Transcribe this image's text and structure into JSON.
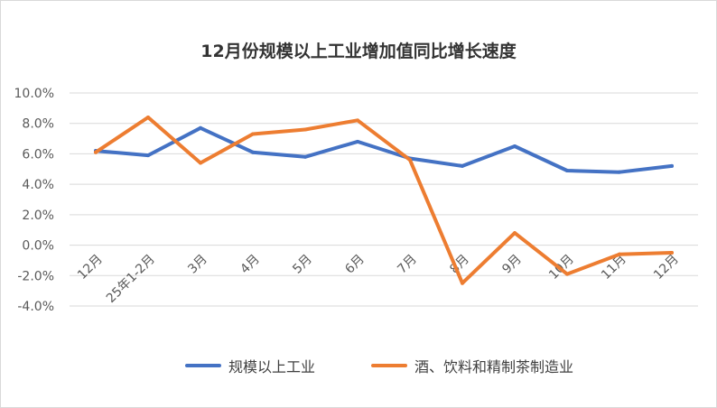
{
  "chart_data": {
    "type": "line",
    "title": "12月份规模以上工业增加值同比增长速度",
    "categories": [
      "12月",
      "25年1-2月",
      "3月",
      "4月",
      "5月",
      "6月",
      "7月",
      "8月",
      "9月",
      "10月",
      "11月",
      "12月"
    ],
    "yticks": [
      "10.0%",
      "8.0%",
      "6.0%",
      "4.0%",
      "2.0%",
      "0.0%",
      "-2.0%",
      "-4.0%"
    ],
    "ylim": [
      -4.0,
      10.0
    ],
    "grid": true,
    "legend_position": "bottom",
    "series": [
      {
        "name": "规模以上工业",
        "color": "#4472c4",
        "values": [
          6.2,
          5.9,
          7.7,
          6.1,
          5.8,
          6.8,
          5.7,
          5.2,
          6.5,
          4.9,
          4.8,
          5.2
        ]
      },
      {
        "name": "酒、饮料和精制茶制造业",
        "color": "#ed7d31",
        "values": [
          6.1,
          8.4,
          5.4,
          7.3,
          7.6,
          8.2,
          5.6,
          -2.5,
          0.8,
          -1.9,
          -0.6,
          -0.5
        ]
      }
    ]
  }
}
